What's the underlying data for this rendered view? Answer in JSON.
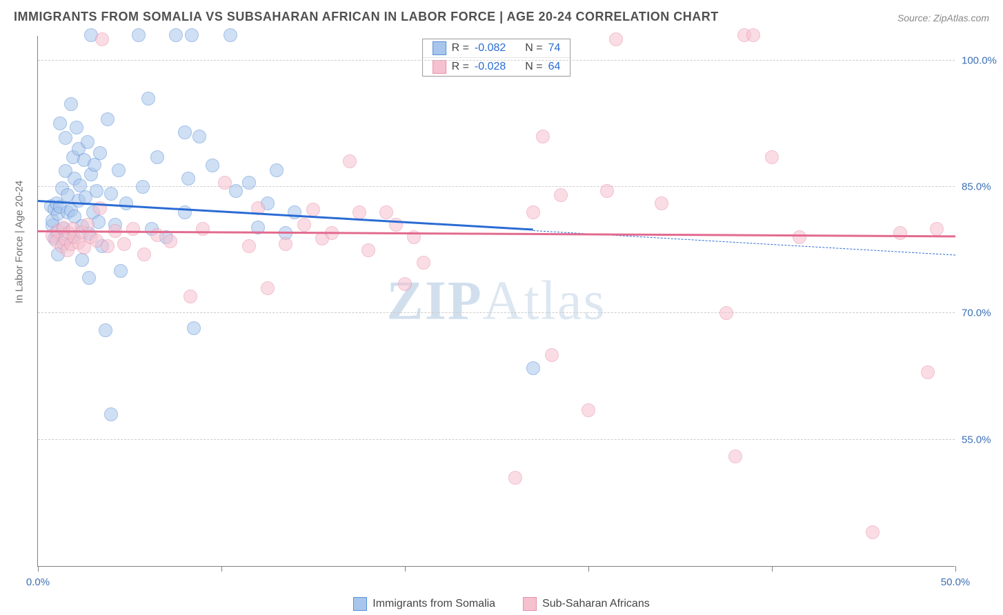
{
  "title": "IMMIGRANTS FROM SOMALIA VS SUBSAHARAN AFRICAN IN LABOR FORCE | AGE 20-24 CORRELATION CHART",
  "source": "Source: ZipAtlas.com",
  "y_axis_label": "In Labor Force | Age 20-24",
  "watermark_bold": "ZIP",
  "watermark_rest": "Atlas",
  "chart": {
    "type": "scatter",
    "xlim": [
      0,
      50
    ],
    "ylim": [
      40,
      103
    ],
    "x_ticks": [
      0,
      10,
      20,
      30,
      40,
      50
    ],
    "x_tick_labels": {
      "0": "0.0%",
      "50": "50.0%"
    },
    "y_grid": [
      55,
      70,
      85,
      100
    ],
    "y_tick_labels": {
      "55": "55.0%",
      "70": "70.0%",
      "85": "85.0%",
      "100": "100.0%"
    },
    "background_color": "#ffffff",
    "grid_color": "#cccccc",
    "axis_color": "#808080",
    "tick_label_color": "#3b6fb6",
    "point_radius": 10,
    "point_opacity": 0.55,
    "series": [
      {
        "key": "somalia",
        "label": "Immigrants from Somalia",
        "fill": "#a8c6ec",
        "stroke": "#5a8fd6",
        "line_color": "#2a6bd4",
        "r_value": "-0.082",
        "n_value": "74",
        "trend": {
          "x1": 0,
          "y1": 83.2,
          "x2": 27,
          "y2": 79.8,
          "ext_x2": 50,
          "ext_y2": 76.9
        },
        "points": [
          [
            0.7,
            82.7
          ],
          [
            0.8,
            80.4
          ],
          [
            0.8,
            81.0
          ],
          [
            0.9,
            82.4
          ],
          [
            0.9,
            78.9
          ],
          [
            1.0,
            79.5
          ],
          [
            1.0,
            83.0
          ],
          [
            1.1,
            81.8
          ],
          [
            1.1,
            77.0
          ],
          [
            1.2,
            82.6
          ],
          [
            1.2,
            92.5
          ],
          [
            1.3,
            84.8
          ],
          [
            1.4,
            80.0
          ],
          [
            1.4,
            78.3
          ],
          [
            1.5,
            86.9
          ],
          [
            1.5,
            90.8
          ],
          [
            1.6,
            82.0
          ],
          [
            1.6,
            84.0
          ],
          [
            1.8,
            94.8
          ],
          [
            1.8,
            82.2
          ],
          [
            1.9,
            88.5
          ],
          [
            1.9,
            79.0
          ],
          [
            2.0,
            86.0
          ],
          [
            2.0,
            81.5
          ],
          [
            2.1,
            92.0
          ],
          [
            2.2,
            83.4
          ],
          [
            2.2,
            89.5
          ],
          [
            2.3,
            85.2
          ],
          [
            2.4,
            80.3
          ],
          [
            2.4,
            76.3
          ],
          [
            2.5,
            88.2
          ],
          [
            2.6,
            83.8
          ],
          [
            2.7,
            90.3
          ],
          [
            2.8,
            79.4
          ],
          [
            2.8,
            74.2
          ],
          [
            2.9,
            103.0
          ],
          [
            2.9,
            86.5
          ],
          [
            3.0,
            82.0
          ],
          [
            3.1,
            87.6
          ],
          [
            3.2,
            84.5
          ],
          [
            3.3,
            80.8
          ],
          [
            3.4,
            89.0
          ],
          [
            3.5,
            78.0
          ],
          [
            3.7,
            68.0
          ],
          [
            3.8,
            93.0
          ],
          [
            4.0,
            84.2
          ],
          [
            4.0,
            58.0
          ],
          [
            4.2,
            80.5
          ],
          [
            4.4,
            87.0
          ],
          [
            4.5,
            75.0
          ],
          [
            4.8,
            83.0
          ],
          [
            5.5,
            103.0
          ],
          [
            5.7,
            85.0
          ],
          [
            6.0,
            95.5
          ],
          [
            6.2,
            80.0
          ],
          [
            6.5,
            88.5
          ],
          [
            7.0,
            79.0
          ],
          [
            7.5,
            103.0
          ],
          [
            8.0,
            91.5
          ],
          [
            8.0,
            82.0
          ],
          [
            8.2,
            86.0
          ],
          [
            8.4,
            103.0
          ],
          [
            8.5,
            68.2
          ],
          [
            8.8,
            91.0
          ],
          [
            9.5,
            87.5
          ],
          [
            10.5,
            103.0
          ],
          [
            10.8,
            84.5
          ],
          [
            11.5,
            85.5
          ],
          [
            12.0,
            80.2
          ],
          [
            12.5,
            83.0
          ],
          [
            13.0,
            87.0
          ],
          [
            13.5,
            79.5
          ],
          [
            14.0,
            82.0
          ],
          [
            27.0,
            63.5
          ]
        ]
      },
      {
        "key": "subsaharan",
        "label": "Sub-Saharan Africans",
        "fill": "#f6c1cf",
        "stroke": "#e890aa",
        "line_color": "#e26a8e",
        "r_value": "-0.028",
        "n_value": "64",
        "trend": {
          "x1": 0,
          "y1": 79.6,
          "x2": 50,
          "y2": 79.0,
          "ext_x2": 50,
          "ext_y2": 79.0
        },
        "points": [
          [
            0.8,
            79.2
          ],
          [
            1.0,
            78.5
          ],
          [
            1.1,
            79.8
          ],
          [
            1.3,
            78.0
          ],
          [
            1.4,
            80.2
          ],
          [
            1.5,
            78.8
          ],
          [
            1.6,
            77.5
          ],
          [
            1.7,
            79.5
          ],
          [
            1.8,
            78.2
          ],
          [
            1.9,
            80.0
          ],
          [
            2.0,
            79.0
          ],
          [
            2.2,
            78.4
          ],
          [
            2.4,
            79.6
          ],
          [
            2.5,
            77.8
          ],
          [
            2.7,
            80.5
          ],
          [
            2.9,
            79.0
          ],
          [
            3.2,
            78.6
          ],
          [
            3.4,
            82.5
          ],
          [
            3.5,
            102.5
          ],
          [
            3.8,
            78.0
          ],
          [
            4.2,
            79.8
          ],
          [
            4.7,
            78.2
          ],
          [
            5.2,
            80.0
          ],
          [
            5.8,
            77.0
          ],
          [
            6.5,
            79.3
          ],
          [
            7.2,
            78.5
          ],
          [
            8.3,
            72.0
          ],
          [
            9.0,
            80.0
          ],
          [
            10.2,
            85.5
          ],
          [
            11.5,
            78.0
          ],
          [
            12.0,
            82.5
          ],
          [
            12.5,
            73.0
          ],
          [
            13.5,
            78.2
          ],
          [
            14.5,
            80.5
          ],
          [
            15.0,
            82.3
          ],
          [
            15.5,
            78.9
          ],
          [
            16.0,
            79.5
          ],
          [
            17.0,
            88.0
          ],
          [
            17.5,
            82.0
          ],
          [
            18.0,
            77.5
          ],
          [
            19.0,
            82.0
          ],
          [
            19.5,
            80.5
          ],
          [
            20.0,
            73.5
          ],
          [
            20.5,
            79.0
          ],
          [
            21.0,
            76.0
          ],
          [
            26.0,
            50.5
          ],
          [
            27.0,
            82.0
          ],
          [
            27.5,
            91.0
          ],
          [
            28.0,
            65.0
          ],
          [
            28.5,
            84.0
          ],
          [
            30.0,
            58.5
          ],
          [
            31.0,
            84.5
          ],
          [
            31.5,
            102.5
          ],
          [
            34.0,
            83.0
          ],
          [
            37.5,
            70.0
          ],
          [
            38.0,
            53.0
          ],
          [
            38.5,
            103.0
          ],
          [
            39.0,
            103.0
          ],
          [
            40.0,
            88.5
          ],
          [
            41.5,
            79.0
          ],
          [
            45.5,
            44.0
          ],
          [
            47.0,
            79.5
          ],
          [
            48.5,
            63.0
          ],
          [
            49.0,
            80.0
          ]
        ]
      }
    ]
  },
  "legend_top": {
    "r_label": "R =",
    "n_label": "N ="
  }
}
